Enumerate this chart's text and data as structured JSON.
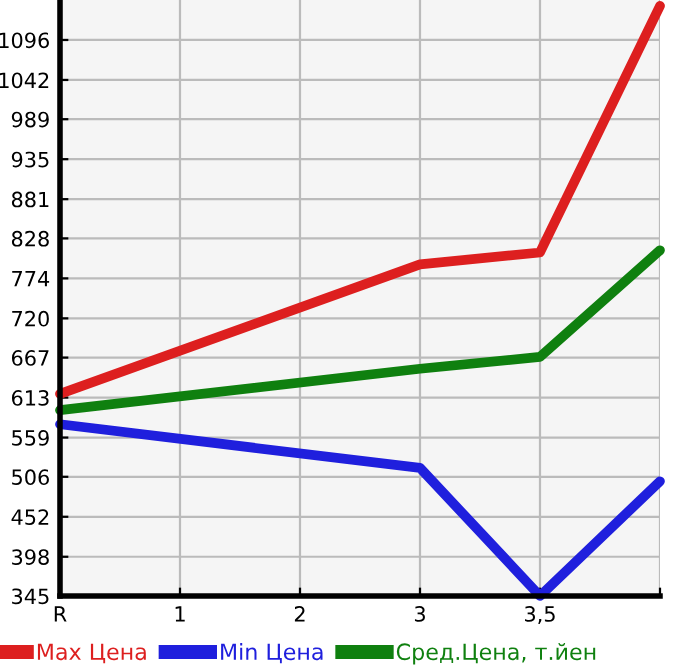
{
  "chart_data": {
    "type": "line",
    "categories": [
      "R",
      "1",
      "2",
      "3",
      "3,5",
      null
    ],
    "ylim": [
      345,
      1150
    ],
    "yticks": [
      345,
      398,
      452,
      506,
      559,
      613,
      667,
      720,
      774,
      828,
      881,
      935,
      989,
      1042,
      1096
    ],
    "grid": true,
    "legend": "bottom",
    "series": [
      {
        "name": "Max Цена",
        "color": "#dd1f1f",
        "values": [
          618,
          null,
          null,
          793,
          809,
          1142
        ]
      },
      {
        "name": "Min Цена",
        "color": "#1f1fdd",
        "values": [
          577,
          null,
          null,
          518,
          345,
          500
        ]
      },
      {
        "name": "Сред.Цена, т.йен",
        "color": "#0f800f",
        "values": [
          596,
          null,
          null,
          652,
          668,
          812
        ]
      }
    ]
  }
}
